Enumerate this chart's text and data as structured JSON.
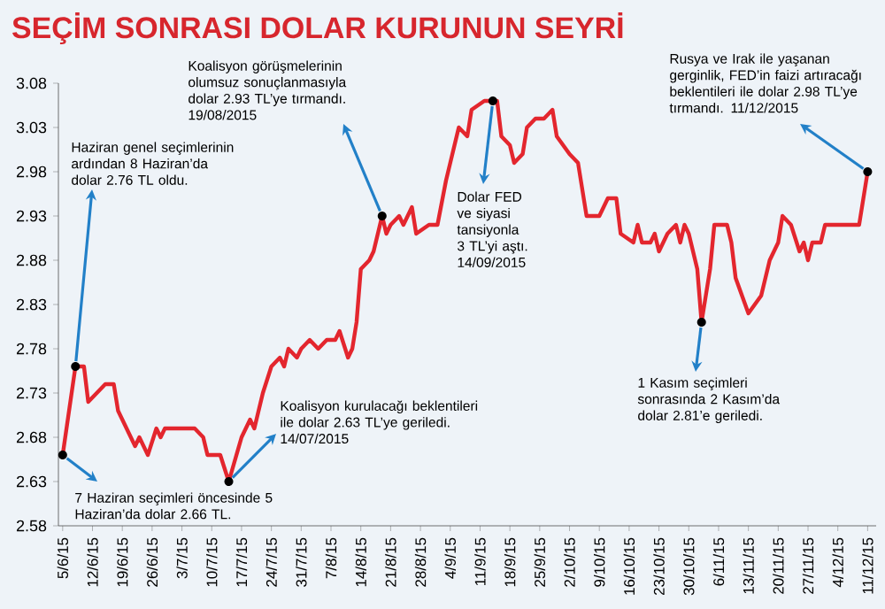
{
  "chart_data": {
    "type": "line",
    "title": "SEÇİM SONRASI DOLAR KURUNUN SEYRİ",
    "x": [
      "2015-06-05",
      "2015-06-08",
      "2015-06-10",
      "2015-06-11",
      "2015-06-13",
      "2015-06-15",
      "2015-06-17",
      "2015-06-18",
      "2015-06-20",
      "2015-06-22",
      "2015-06-23",
      "2015-06-25",
      "2015-06-27",
      "2015-06-28",
      "2015-06-29",
      "2015-07-02",
      "2015-07-06",
      "2015-07-08",
      "2015-07-09",
      "2015-07-10",
      "2015-07-12",
      "2015-07-14",
      "2015-07-17",
      "2015-07-19",
      "2015-07-20",
      "2015-07-22",
      "2015-07-24",
      "2015-07-26",
      "2015-07-27",
      "2015-07-28",
      "2015-07-30",
      "2015-07-31",
      "2015-08-02",
      "2015-08-04",
      "2015-08-06",
      "2015-08-08",
      "2015-08-09",
      "2015-08-11",
      "2015-08-12",
      "2015-08-13",
      "2015-08-14",
      "2015-08-16",
      "2015-08-17",
      "2015-08-19",
      "2015-08-20",
      "2015-08-21",
      "2015-08-23",
      "2015-08-24",
      "2015-08-26",
      "2015-08-27",
      "2015-08-30",
      "2015-09-01",
      "2015-09-03",
      "2015-09-06",
      "2015-09-08",
      "2015-09-09",
      "2015-09-12",
      "2015-09-14",
      "2015-09-15",
      "2015-09-16",
      "2015-09-18",
      "2015-09-19",
      "2015-09-21",
      "2015-09-22",
      "2015-09-24",
      "2015-09-26",
      "2015-09-28",
      "2015-09-29",
      "2015-10-02",
      "2015-10-04",
      "2015-10-06",
      "2015-10-08",
      "2015-10-09",
      "2015-10-11",
      "2015-10-13",
      "2015-10-14",
      "2015-10-17",
      "2015-10-18",
      "2015-10-19",
      "2015-10-21",
      "2015-10-22",
      "2015-10-23",
      "2015-10-25",
      "2015-10-27",
      "2015-10-28",
      "2015-10-29",
      "2015-10-30",
      "2015-11-01",
      "2015-11-02",
      "2015-11-03",
      "2015-11-04",
      "2015-11-05",
      "2015-11-06",
      "2015-11-08",
      "2015-11-09",
      "2015-11-10",
      "2015-11-13",
      "2015-11-16",
      "2015-11-18",
      "2015-11-20",
      "2015-11-21",
      "2015-11-23",
      "2015-11-25",
      "2015-11-26",
      "2015-11-27",
      "2015-11-28",
      "2015-11-30",
      "2015-12-01",
      "2015-12-05",
      "2015-12-09",
      "2015-12-11"
    ],
    "series": [
      {
        "color": "#e3262e",
        "values": [
          2.66,
          2.76,
          2.76,
          2.72,
          2.73,
          2.74,
          2.74,
          2.71,
          2.69,
          2.67,
          2.68,
          2.66,
          2.69,
          2.68,
          2.69,
          2.69,
          2.69,
          2.68,
          2.66,
          2.66,
          2.66,
          2.63,
          2.68,
          2.7,
          2.69,
          2.73,
          2.76,
          2.77,
          2.76,
          2.78,
          2.77,
          2.78,
          2.79,
          2.78,
          2.79,
          2.79,
          2.8,
          2.77,
          2.78,
          2.81,
          2.87,
          2.88,
          2.89,
          2.93,
          2.91,
          2.92,
          2.93,
          2.92,
          2.94,
          2.91,
          2.92,
          2.92,
          2.97,
          3.03,
          3.02,
          3.05,
          3.06,
          3.06,
          3.06,
          3.02,
          3.01,
          2.99,
          3.0,
          3.03,
          3.04,
          3.04,
          3.05,
          3.02,
          3.0,
          2.99,
          2.93,
          2.93,
          2.93,
          2.95,
          2.95,
          2.91,
          2.9,
          2.92,
          2.9,
          2.9,
          2.91,
          2.89,
          2.91,
          2.92,
          2.9,
          2.92,
          2.91,
          2.87,
          2.81,
          2.84,
          2.87,
          2.92,
          2.92,
          2.92,
          2.9,
          2.86,
          2.82,
          2.84,
          2.88,
          2.9,
          2.93,
          2.92,
          2.89,
          2.9,
          2.88,
          2.9,
          2.9,
          2.92,
          2.92,
          2.92,
          2.98
        ]
      }
    ],
    "xlim": [
      "2015-06-04",
      "2015-12-13"
    ],
    "ylim": [
      2.58,
      3.08
    ],
    "xticks": [
      {
        "value": "2015-06-05",
        "label": "5/6/15"
      },
      {
        "value": "2015-06-12",
        "label": "12/6/15"
      },
      {
        "value": "2015-06-19",
        "label": "19/6/15"
      },
      {
        "value": "2015-06-26",
        "label": "26/6/15"
      },
      {
        "value": "2015-07-03",
        "label": "3/7/15"
      },
      {
        "value": "2015-07-10",
        "label": "10/7/15"
      },
      {
        "value": "2015-07-17",
        "label": "17/7/15"
      },
      {
        "value": "2015-07-24",
        "label": "24/7/15"
      },
      {
        "value": "2015-07-31",
        "label": "31/7/15"
      },
      {
        "value": "2015-08-07",
        "label": "7/8/15"
      },
      {
        "value": "2015-08-14",
        "label": "14/8/15"
      },
      {
        "value": "2015-08-21",
        "label": "21/8/15"
      },
      {
        "value": "2015-08-28",
        "label": "28/8/15"
      },
      {
        "value": "2015-09-04",
        "label": "4/9/15"
      },
      {
        "value": "2015-09-11",
        "label": "11/9/15"
      },
      {
        "value": "2015-09-18",
        "label": "18/9/15"
      },
      {
        "value": "2015-09-25",
        "label": "25/9/15"
      },
      {
        "value": "2015-10-02",
        "label": "2/10/15"
      },
      {
        "value": "2015-10-09",
        "label": "9/10/15"
      },
      {
        "value": "2015-10-16",
        "label": "16/10/15"
      },
      {
        "value": "2015-10-23",
        "label": "23/10/15"
      },
      {
        "value": "2015-10-30",
        "label": "30/10/15"
      },
      {
        "value": "2015-11-06",
        "label": "6/11/15"
      },
      {
        "value": "2015-11-13",
        "label": "13/11/15"
      },
      {
        "value": "2015-11-20",
        "label": "20/11/15"
      },
      {
        "value": "2015-11-27",
        "label": "27/11/15"
      },
      {
        "value": "2015-12-04",
        "label": "4/12/15"
      },
      {
        "value": "2015-12-11",
        "label": "11/12/15"
      }
    ],
    "yticks": [
      2.58,
      2.63,
      2.68,
      2.73,
      2.78,
      2.83,
      2.88,
      2.93,
      2.98,
      3.03,
      3.08
    ],
    "annotations": [
      {
        "text": "7 Haziran seçimleri öncesinde 5 Haziran’da dolar 2.66 TL.",
        "x": "2015-06-05",
        "y": 2.66
      },
      {
        "text": "Haziran genel seçimlerinin ardından 8 Haziran’da dolar 2.76 TL oldu.",
        "x": "2015-06-08",
        "y": 2.76
      },
      {
        "text": "Koalisyon kurulacağı beklentileri ile dolar 2.63 TL’ye geriledi. 14/07/2015",
        "x": "2015-07-14",
        "y": 2.63
      },
      {
        "text": "Koalisyon görüşmelerinin olumsuz sonuçlanmasıyla dolar 2.93 TL’ye tırmandı. 19/08/2015",
        "x": "2015-08-19",
        "y": 2.93
      },
      {
        "text": "Dolar FED ve siyasi tansiyonla 3 TL’yi aştı. 14/09/2015",
        "x": "2015-09-14",
        "y": 3.06
      },
      {
        "text": "1 Kasım seçimleri sonrasında 2 Kasım’da dolar 2.81’e geriledi.",
        "x": "2015-11-02",
        "y": 2.81
      },
      {
        "text": "Rusya ve Irak ile yaşanan gerginlik, FED’in faizi artıracağı beklentileri ile dolar 2.98 TL’ye tırmandı. 11/12/2015",
        "x": "2015-12-11",
        "y": 2.98
      }
    ]
  }
}
